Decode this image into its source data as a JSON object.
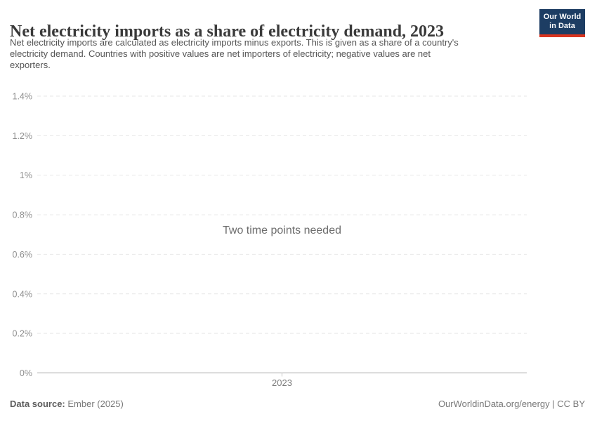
{
  "header": {
    "title": "Net electricity imports as a share of electricity demand, 2023",
    "logo": {
      "line1": "Our World",
      "line2": "in Data",
      "bg_color": "#1d3d63",
      "bar_color": "#d9341f"
    }
  },
  "subtitle": {
    "lines": [
      "Net electricity imports are calculated as electricity imports minus exports. This is given as a share of a country's",
      "electricity demand. Countries with positive values are net importers of electricity; negative values are net",
      "exporters."
    ]
  },
  "chart_data": {
    "type": "line",
    "title": "Net electricity imports as a share of electricity demand, 2023",
    "series": [],
    "categories": [
      "2023"
    ],
    "xtick_labels": [
      "2023"
    ],
    "xlabel": "",
    "ylabel": "",
    "ylim": [
      0,
      1.4
    ],
    "ytick_values": [
      0,
      0.2,
      0.4,
      0.6,
      0.8,
      1,
      1.2,
      1.4
    ],
    "ytick_labels": [
      "0%",
      "0.2%",
      "0.4%",
      "0.6%",
      "0.8%",
      "1%",
      "1.2%",
      "1.4%"
    ],
    "grid": "horizontal-dashed",
    "legend": "none",
    "annotation": "Two time points needed"
  },
  "footer": {
    "datasource_label": "Data source:",
    "datasource_value": " Ember (2025)",
    "credit": "OurWorldinData.org/energy | CC BY"
  },
  "colors": {
    "title_text": "#3a3a3a",
    "subtitle_text": "#555555",
    "tick_label": "#8f8f8f",
    "gridline": "#e7e7e7",
    "axis_line": "#a3a3a3",
    "annotation_text": "#6d6d6d"
  }
}
